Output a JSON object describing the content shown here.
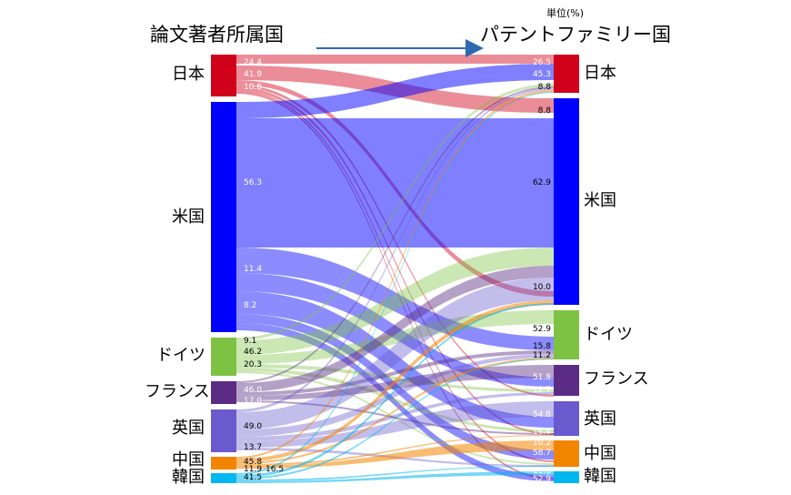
{
  "header": {
    "left_title": "論文著者所属国",
    "right_title": "パテントファミリー国",
    "unit": "単位(%)"
  },
  "colors": {
    "japan": "#d0021b",
    "us": "#0000ff",
    "germany": "#7dc242",
    "france": "#5b2c83",
    "uk": "#6a5acd",
    "china": "#f28500",
    "korea": "#00b7ef",
    "arrow": "#2e6ab0"
  },
  "chart_data": {
    "type": "sankey",
    "title": "",
    "source_nodes": [
      {
        "id": "jp",
        "label": "日本",
        "color": "#d0021b"
      },
      {
        "id": "us",
        "label": "米国",
        "color": "#0000ff"
      },
      {
        "id": "de",
        "label": "ドイツ",
        "color": "#7dc242"
      },
      {
        "id": "fr",
        "label": "フランス",
        "color": "#5b2c83"
      },
      {
        "id": "uk",
        "label": "英国",
        "color": "#6a5acd"
      },
      {
        "id": "cn",
        "label": "中国",
        "color": "#f28500"
      },
      {
        "id": "kr",
        "label": "韓国",
        "color": "#00b7ef"
      }
    ],
    "target_nodes": [
      {
        "id": "jp",
        "label": "日本",
        "color": "#d0021b"
      },
      {
        "id": "us",
        "label": "米国",
        "color": "#0000ff"
      },
      {
        "id": "de",
        "label": "ドイツ",
        "color": "#7dc242"
      },
      {
        "id": "fr",
        "label": "フランス",
        "color": "#5b2c83"
      },
      {
        "id": "uk",
        "label": "英国",
        "color": "#6a5acd"
      },
      {
        "id": "cn",
        "label": "中国",
        "color": "#f28500"
      },
      {
        "id": "kr",
        "label": "韓国",
        "color": "#00b7ef"
      }
    ],
    "source_labels": [
      {
        "node": "jp",
        "values": [
          "24.4",
          "41.9",
          "10.8"
        ]
      },
      {
        "node": "us",
        "values": [
          "56.3",
          "11.4",
          "8.2"
        ]
      },
      {
        "node": "de",
        "values": [
          "9.1",
          "46.2",
          "20.3"
        ]
      },
      {
        "node": "fr",
        "values": [
          "46.0",
          "17.0"
        ]
      },
      {
        "node": "uk",
        "values": [
          "49.0",
          "13.7"
        ]
      },
      {
        "node": "cn",
        "values": [
          "45.8",
          "11.9",
          "16.5"
        ]
      },
      {
        "node": "kr",
        "values": [
          "41.5"
        ]
      }
    ],
    "target_labels": [
      {
        "node": "jp",
        "values": [
          "26.5",
          "45.3",
          "8.8",
          "8.8"
        ]
      },
      {
        "node": "us",
        "values": [
          "62.9",
          "10.0"
        ]
      },
      {
        "node": "de",
        "values": [
          "52.9",
          "15.8",
          "11.2"
        ]
      },
      {
        "node": "fr",
        "values": [
          "51.8",
          "12.7"
        ]
      },
      {
        "node": "uk",
        "values": [
          "54.8",
          "16.6",
          "10.2"
        ]
      },
      {
        "node": "cn",
        "values": [
          "58.7",
          "11.3"
        ]
      },
      {
        "node": "kr",
        "values": [
          "52.9"
        ]
      }
    ]
  }
}
